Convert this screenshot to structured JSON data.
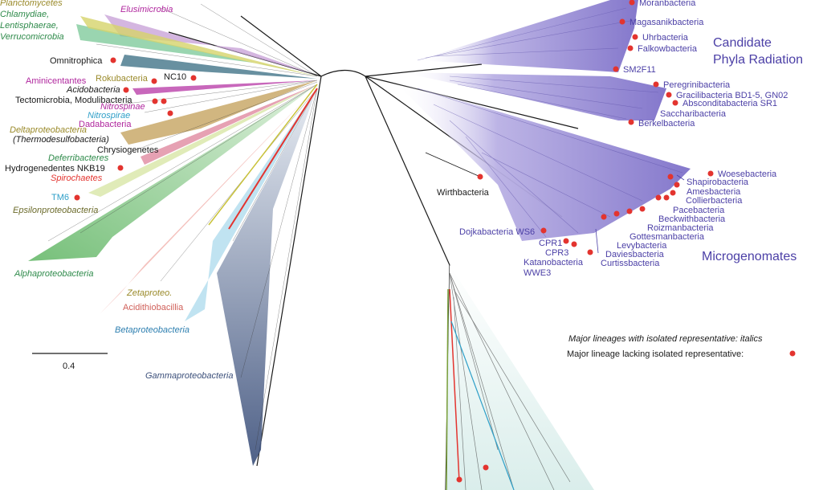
{
  "colors": {
    "cpr_fill": "#8b7fd1",
    "cpr_text": "#4b3fa6",
    "marker": "#e3342f",
    "alpha_green": "#3fa04a",
    "gamma_blue": "#3b4f7a",
    "beta_blue": "#2e9fc8",
    "magenta": "#b0279e",
    "olive": "#9a8a2a",
    "black": "#1a1a1a"
  },
  "left_labels": {
    "planctomycetes": "Planctomycetes",
    "chlamydiae": "Chlamydiae,",
    "lentisphaerae": "Lentisphaerae,",
    "verrucomicrobia": "Verrucomicrobia",
    "elusimicrobia": "Elusimicrobia",
    "omnitrophica": "Omnitrophica",
    "rokubacteria": "Rokubacteria",
    "nc10": "NC10",
    "aminicentantes": "Aminicentantes",
    "acidobacteria": "Acidobacteria",
    "tectomicrobia": "Tectomicrobia, Modulibacteria",
    "nitrospinae": "Nitrospinae",
    "nitrospirae": "Nitrospirae",
    "dadabacteria": "Dadabacteria",
    "deltaproteobacteria": "Deltaproteobacteria",
    "thermodesulfobacteria": "(Thermodesulfobacteria)",
    "chrysiogenetes": "Chrysiogenetes",
    "deferribacteres": "Deferribacteres",
    "hydrogenedentes": "Hydrogenedentes NKB19",
    "spirochaetes": "Spirochaetes",
    "tm6": "TM6",
    "epsilonproteobacteria": "Epsilonproteobacteria",
    "alphaproteobacteria": "Alphaproteobacteria",
    "zetaproteo": "Zetaproteo.",
    "acidithiobacillia": "Acidithiobacillia",
    "betaproteobacteria": "Betaproteobacteria",
    "gammaproteobacteria": "Gammaproteobacteria"
  },
  "scale_bar": {
    "label": "0.4"
  },
  "cpr": {
    "title_line1": "Candidate",
    "title_line2": "Phyla Radiation",
    "moranbacteria": "Moranbacteria",
    "magasanikbacteria": "Magasanikbacteria",
    "uhrbacteria": "Uhrbacteria",
    "falkowbacteria": "Falkowbacteria",
    "sm2f11": "SM2F11",
    "peregrinibacteria": "Peregrinibacteria",
    "gracilibacteria": "Gracilibacteria BD1-5, GN02",
    "absconditabacteria": "Absconditabacteria SR1",
    "saccharibacteria": "Saccharibacteria",
    "berkelbacteria": "Berkelbacteria",
    "woesebacteria": "Woesebacteria",
    "shapirobacteria": "Shapirobacteria",
    "amesbacteria": "Amesbacteria",
    "collierbacteria": "Collierbacteria",
    "pacebacteria": "Pacebacteria",
    "beckwithbacteria": "Beckwithbacteria",
    "roizmanbacteria": "Roizmanbacteria",
    "gottesmanbacteria": "Gottesmanbacteria",
    "levybacteria": "Levybacteria",
    "daviesbacteria": "Daviesbacteria",
    "curtissbacteria": "Curtissbacteria",
    "microgenomates": "Microgenomates",
    "dojkabacteria": "Dojkabacteria WS6",
    "cpr1": "CPR1",
    "cpr3": "CPR3",
    "katanobacteria": "Katanobacteria",
    "wwe3": "WWE3"
  },
  "wirthbacteria": "Wirthbacteria",
  "legend": {
    "line1": "Major lineages with isolated representative: italics",
    "line2": "Major lineage lacking isolated representative:"
  }
}
